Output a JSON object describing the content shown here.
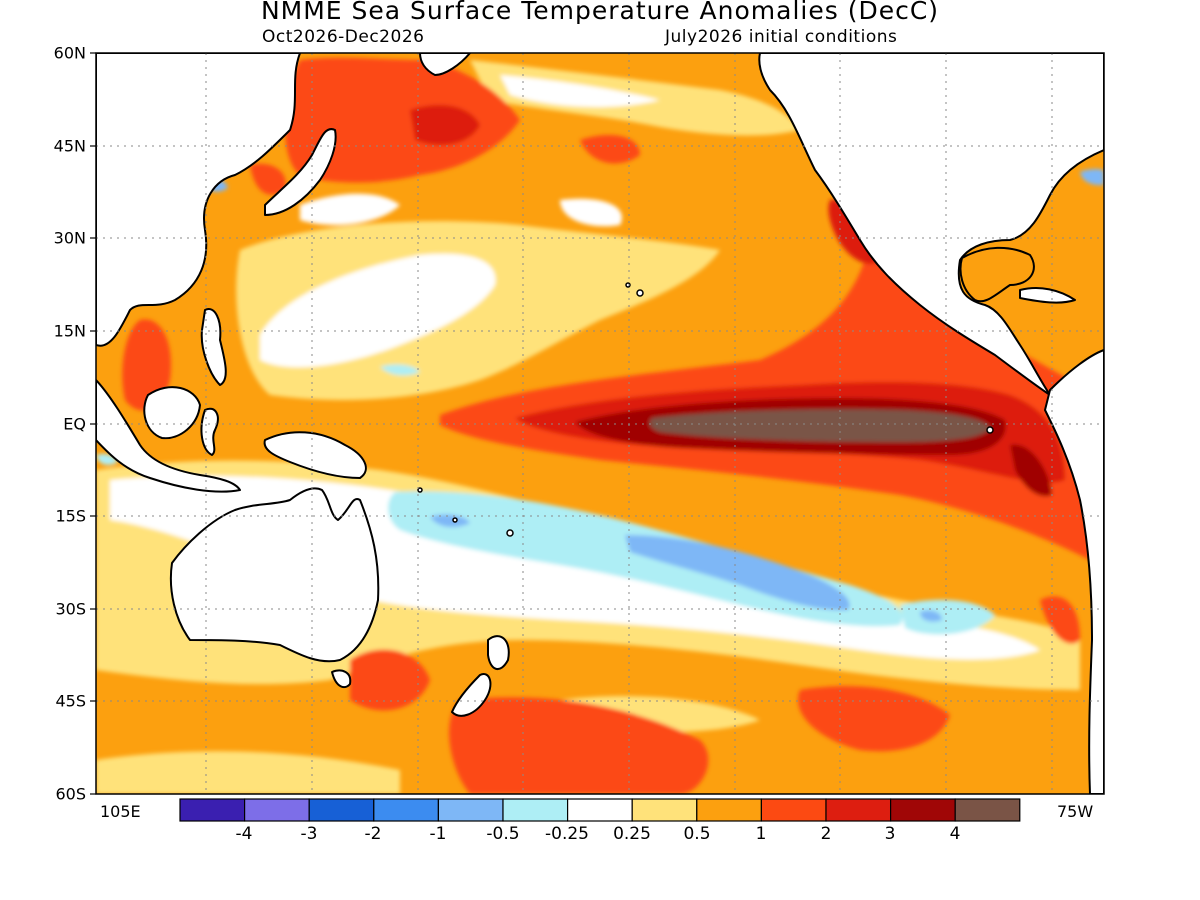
{
  "header": {
    "title": "NMME Sea Surface Temperature Anomalies (DecC)",
    "period": "Oct2026-Dec2026",
    "init": "July2026 initial conditions"
  },
  "axes": {
    "lat_labels": [
      "60N",
      "45N",
      "30N",
      "15N",
      "EQ",
      "15S",
      "30S",
      "45S",
      "60S"
    ],
    "lon_left": "105E",
    "lon_right": "75W"
  },
  "colorbar": {
    "labels": [
      "-4",
      "-3",
      "-2",
      "-1",
      "-0.5",
      "-0.25",
      "0.25",
      "0.5",
      "1",
      "2",
      "3",
      "4"
    ],
    "colors": [
      "#3a1fb0",
      "#7d6ee8",
      "#1760d6",
      "#3c8cf0",
      "#7eb7f6",
      "#aeeef5",
      "#ffffff",
      "#ffe27a",
      "#fca00f",
      "#fc4a12",
      "#dd1e10",
      "#a00606",
      "#7a5446"
    ]
  },
  "palette": {
    "ocean_base": "#fca00f",
    "land": "#ffffff",
    "coast": "#000000",
    "grid": "#8a8a8a"
  }
}
